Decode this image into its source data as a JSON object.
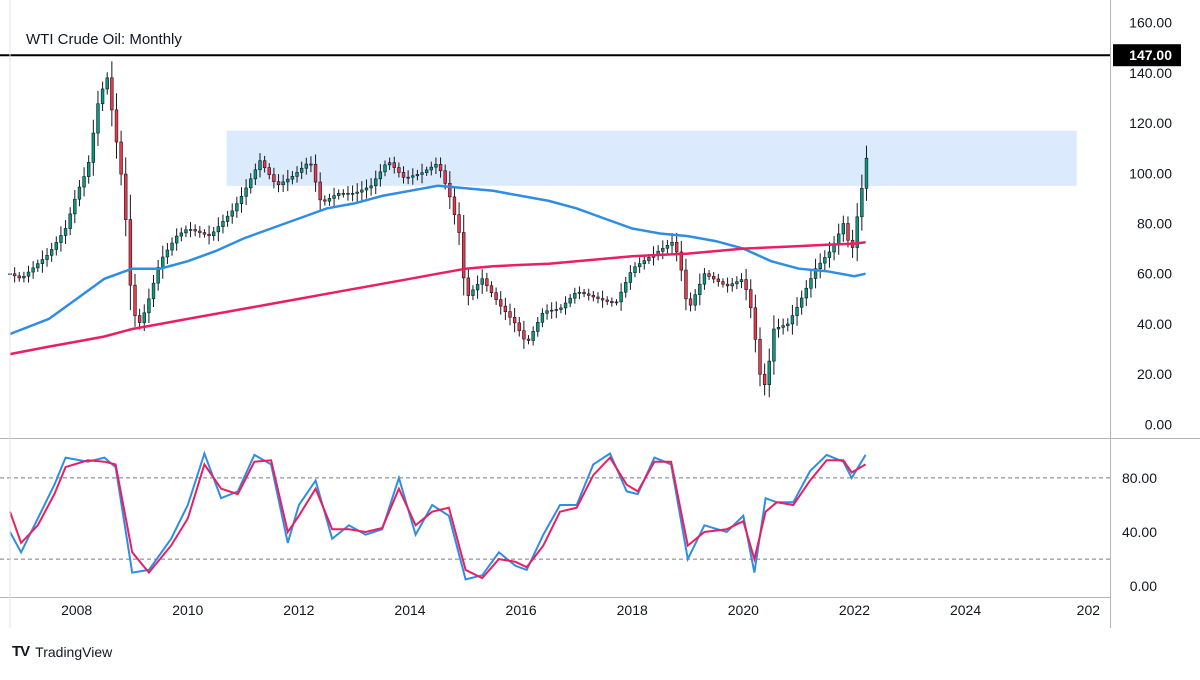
{
  "header": {
    "title": "WTI Crude Oil: Monthly"
  },
  "footer": {
    "brand": "TradingView"
  },
  "colors": {
    "bull": "#089981",
    "bear": "#f23645",
    "candle": "#131722",
    "sma_blue": "#2f8de4",
    "sma_pink": "#e91e63",
    "zone": "#dbeafc",
    "line147": "#000000",
    "grid_dash": "#787b86",
    "stoch_k": "#2f8de4",
    "stoch_d": "#e91e63"
  },
  "chart_data": [
    {
      "type": "candlestick",
      "title": "WTI Crude Oil: Monthly",
      "ylim": [
        -5,
        165
      ],
      "y_ticks": [
        "160.00",
        "140.00",
        "120.00",
        "100.00",
        "80.00",
        "60.00",
        "40.00",
        "20.00",
        "0.00"
      ],
      "x_ticks": [
        "2008",
        "2010",
        "2012",
        "2014",
        "2016",
        "2018",
        "2020",
        "2022",
        "2024",
        "202"
      ],
      "x_range": [
        2006.8,
        2026.6
      ],
      "horizontal_line": {
        "value": 147.0,
        "label": "147.00"
      },
      "zone": {
        "x_from": 2010.7,
        "x_to": 2026.0,
        "y_from": 95,
        "y_to": 117
      },
      "price_path": [
        [
          2006.8,
          60
        ],
        [
          2007.0,
          58
        ],
        [
          2007.5,
          68
        ],
        [
          2007.8,
          78
        ],
        [
          2008.0,
          92
        ],
        [
          2008.2,
          102
        ],
        [
          2008.4,
          130
        ],
        [
          2008.55,
          138
        ],
        [
          2008.7,
          115
        ],
        [
          2008.85,
          92
        ],
        [
          2009.0,
          45
        ],
        [
          2009.15,
          40
        ],
        [
          2009.3,
          50
        ],
        [
          2009.5,
          65
        ],
        [
          2009.8,
          75
        ],
        [
          2010.0,
          78
        ],
        [
          2010.4,
          75
        ],
        [
          2010.8,
          85
        ],
        [
          2011.0,
          92
        ],
        [
          2011.3,
          105
        ],
        [
          2011.6,
          95
        ],
        [
          2011.9,
          99
        ],
        [
          2012.2,
          105
        ],
        [
          2012.4,
          88
        ],
        [
          2012.7,
          92
        ],
        [
          2013.0,
          92
        ],
        [
          2013.3,
          95
        ],
        [
          2013.6,
          105
        ],
        [
          2013.9,
          98
        ],
        [
          2014.2,
          100
        ],
        [
          2014.5,
          104
        ],
        [
          2014.7,
          92
        ],
        [
          2014.9,
          75
        ],
        [
          2015.0,
          50
        ],
        [
          2015.3,
          58
        ],
        [
          2015.6,
          48
        ],
        [
          2015.9,
          40
        ],
        [
          2016.1,
          32
        ],
        [
          2016.4,
          45
        ],
        [
          2016.7,
          46
        ],
        [
          2017.0,
          53
        ],
        [
          2017.4,
          50
        ],
        [
          2017.7,
          48
        ],
        [
          2018.0,
          62
        ],
        [
          2018.4,
          68
        ],
        [
          2018.75,
          73
        ],
        [
          2018.9,
          60
        ],
        [
          2019.0,
          45
        ],
        [
          2019.3,
          60
        ],
        [
          2019.7,
          55
        ],
        [
          2020.0,
          58
        ],
        [
          2020.15,
          45
        ],
        [
          2020.3,
          20
        ],
        [
          2020.4,
          15
        ],
        [
          2020.55,
          38
        ],
        [
          2020.8,
          40
        ],
        [
          2021.0,
          48
        ],
        [
          2021.3,
          62
        ],
        [
          2021.6,
          70
        ],
        [
          2021.8,
          80
        ],
        [
          2021.95,
          68
        ],
        [
          2022.1,
          90
        ],
        [
          2022.2,
          102
        ],
        [
          2022.25,
          114
        ]
      ],
      "series": [
        {
          "color": "#2f8de4",
          "points": [
            [
              2006.8,
              36
            ],
            [
              2007.5,
              42
            ],
            [
              2008.0,
              50
            ],
            [
              2008.5,
              58
            ],
            [
              2009.0,
              62
            ],
            [
              2009.5,
              62
            ],
            [
              2010.0,
              65
            ],
            [
              2010.5,
              69
            ],
            [
              2011.0,
              74
            ],
            [
              2011.5,
              78
            ],
            [
              2012.0,
              82
            ],
            [
              2012.5,
              86
            ],
            [
              2013.0,
              88
            ],
            [
              2013.5,
              91
            ],
            [
              2014.0,
              93
            ],
            [
              2014.5,
              95
            ],
            [
              2015.0,
              94
            ],
            [
              2015.5,
              93
            ],
            [
              2016.0,
              91
            ],
            [
              2016.5,
              89
            ],
            [
              2017.0,
              86
            ],
            [
              2017.5,
              82
            ],
            [
              2018.0,
              78
            ],
            [
              2018.5,
              76
            ],
            [
              2019.0,
              75
            ],
            [
              2019.5,
              73
            ],
            [
              2020.0,
              70
            ],
            [
              2020.5,
              65
            ],
            [
              2021.0,
              62
            ],
            [
              2021.5,
              61
            ],
            [
              2022.0,
              59
            ],
            [
              2022.2,
              60
            ]
          ]
        },
        {
          "color": "#e91e63",
          "points": [
            [
              2006.8,
              28
            ],
            [
              2007.5,
              31
            ],
            [
              2008.0,
              33
            ],
            [
              2008.5,
              35
            ],
            [
              2009.0,
              38
            ],
            [
              2009.5,
              40
            ],
            [
              2010.0,
              42
            ],
            [
              2010.5,
              44
            ],
            [
              2011.0,
              46
            ],
            [
              2011.5,
              48
            ],
            [
              2012.0,
              50
            ],
            [
              2012.5,
              52
            ],
            [
              2013.0,
              54
            ],
            [
              2013.5,
              56
            ],
            [
              2014.0,
              58
            ],
            [
              2014.5,
              60
            ],
            [
              2015.0,
              62
            ],
            [
              2015.5,
              63
            ],
            [
              2016.0,
              63.5
            ],
            [
              2016.5,
              64
            ],
            [
              2017.0,
              65
            ],
            [
              2017.5,
              66
            ],
            [
              2018.0,
              67
            ],
            [
              2018.5,
              67.5
            ],
            [
              2019.0,
              68
            ],
            [
              2019.5,
              69
            ],
            [
              2020.0,
              70
            ],
            [
              2020.5,
              70.5
            ],
            [
              2021.0,
              71
            ],
            [
              2021.5,
              71.5
            ],
            [
              2022.0,
              72
            ],
            [
              2022.2,
              72.5
            ]
          ]
        }
      ]
    },
    {
      "type": "line",
      "ylim": [
        -8,
        108
      ],
      "y_ticks": [
        "80.00",
        "40.00",
        "0.00"
      ],
      "levels": [
        80,
        20
      ],
      "series": [
        {
          "color": "#2f8de4",
          "points": [
            [
              2006.8,
              40
            ],
            [
              2007.0,
              25
            ],
            [
              2007.3,
              50
            ],
            [
              2007.6,
              75
            ],
            [
              2007.8,
              95
            ],
            [
              2008.2,
              92
            ],
            [
              2008.5,
              95
            ],
            [
              2008.7,
              88
            ],
            [
              2009.0,
              10
            ],
            [
              2009.3,
              12
            ],
            [
              2009.7,
              35
            ],
            [
              2010.0,
              60
            ],
            [
              2010.3,
              98
            ],
            [
              2010.6,
              65
            ],
            [
              2010.9,
              70
            ],
            [
              2011.2,
              97
            ],
            [
              2011.5,
              90
            ],
            [
              2011.8,
              32
            ],
            [
              2012.0,
              60
            ],
            [
              2012.3,
              78
            ],
            [
              2012.6,
              35
            ],
            [
              2012.9,
              45
            ],
            [
              2013.2,
              38
            ],
            [
              2013.5,
              42
            ],
            [
              2013.8,
              80
            ],
            [
              2014.1,
              38
            ],
            [
              2014.4,
              60
            ],
            [
              2014.7,
              52
            ],
            [
              2015.0,
              5
            ],
            [
              2015.3,
              8
            ],
            [
              2015.6,
              25
            ],
            [
              2015.9,
              15
            ],
            [
              2016.1,
              12
            ],
            [
              2016.4,
              38
            ],
            [
              2016.7,
              60
            ],
            [
              2017.0,
              60
            ],
            [
              2017.3,
              90
            ],
            [
              2017.6,
              98
            ],
            [
              2017.9,
              70
            ],
            [
              2018.1,
              68
            ],
            [
              2018.4,
              95
            ],
            [
              2018.7,
              90
            ],
            [
              2019.0,
              20
            ],
            [
              2019.3,
              45
            ],
            [
              2019.7,
              40
            ],
            [
              2020.0,
              52
            ],
            [
              2020.2,
              10
            ],
            [
              2020.4,
              65
            ],
            [
              2020.6,
              62
            ],
            [
              2020.9,
              62
            ],
            [
              2021.2,
              85
            ],
            [
              2021.5,
              97
            ],
            [
              2021.8,
              92
            ],
            [
              2021.95,
              80
            ],
            [
              2022.2,
              97
            ]
          ]
        },
        {
          "color": "#e91e63",
          "points": [
            [
              2006.8,
              55
            ],
            [
              2007.0,
              32
            ],
            [
              2007.3,
              45
            ],
            [
              2007.6,
              68
            ],
            [
              2007.8,
              88
            ],
            [
              2008.2,
              93
            ],
            [
              2008.5,
              92
            ],
            [
              2008.7,
              90
            ],
            [
              2009.0,
              25
            ],
            [
              2009.3,
              10
            ],
            [
              2009.7,
              30
            ],
            [
              2010.0,
              50
            ],
            [
              2010.3,
              90
            ],
            [
              2010.6,
              72
            ],
            [
              2010.9,
              68
            ],
            [
              2011.2,
              92
            ],
            [
              2011.5,
              93
            ],
            [
              2011.8,
              40
            ],
            [
              2012.0,
              52
            ],
            [
              2012.3,
              72
            ],
            [
              2012.6,
              42
            ],
            [
              2012.9,
              42
            ],
            [
              2013.2,
              40
            ],
            [
              2013.5,
              43
            ],
            [
              2013.8,
              72
            ],
            [
              2014.1,
              45
            ],
            [
              2014.4,
              55
            ],
            [
              2014.7,
              58
            ],
            [
              2015.0,
              12
            ],
            [
              2015.3,
              6
            ],
            [
              2015.6,
              20
            ],
            [
              2015.9,
              18
            ],
            [
              2016.1,
              14
            ],
            [
              2016.4,
              30
            ],
            [
              2016.7,
              55
            ],
            [
              2017.0,
              58
            ],
            [
              2017.3,
              82
            ],
            [
              2017.6,
              95
            ],
            [
              2017.9,
              75
            ],
            [
              2018.1,
              70
            ],
            [
              2018.4,
              92
            ],
            [
              2018.7,
              92
            ],
            [
              2019.0,
              30
            ],
            [
              2019.3,
              40
            ],
            [
              2019.7,
              42
            ],
            [
              2020.0,
              48
            ],
            [
              2020.2,
              20
            ],
            [
              2020.4,
              55
            ],
            [
              2020.6,
              62
            ],
            [
              2020.9,
              60
            ],
            [
              2021.2,
              78
            ],
            [
              2021.5,
              93
            ],
            [
              2021.8,
              93
            ],
            [
              2021.95,
              84
            ],
            [
              2022.2,
              90
            ]
          ]
        }
      ]
    }
  ]
}
